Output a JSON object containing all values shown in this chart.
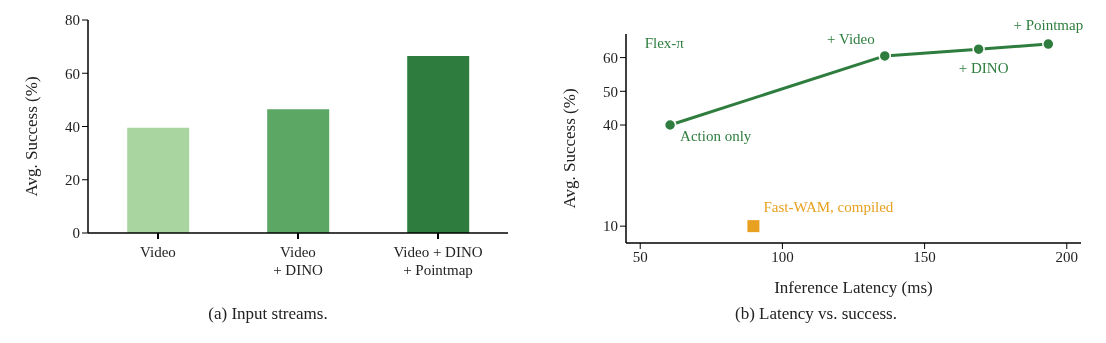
{
  "chart_data": [
    {
      "type": "bar",
      "title": "(a) Input streams.",
      "ylabel": "Avg. Success (%)",
      "categories": [
        "Video",
        "Video\n+ DINO",
        "Video + DINO\n+ Pointmap"
      ],
      "values": [
        39.5,
        46.5,
        66.5
      ],
      "colors": [
        "#a8d5a0",
        "#5ba763",
        "#2e7d3e"
      ],
      "ylim": [
        0,
        80
      ],
      "yticks": [
        0,
        20,
        40,
        60,
        80
      ],
      "grid": false,
      "legend": false
    },
    {
      "type": "line",
      "title": "(b) Latency vs. success.",
      "xlabel": "Inference Latency (ms)",
      "ylabel": "Avg. Success (%)",
      "xlim": [
        45,
        205
      ],
      "xticks": [
        50,
        100,
        150,
        200
      ],
      "ylim": [
        5,
        67
      ],
      "yticks": [
        10,
        40,
        50,
        60
      ],
      "grid": false,
      "legend": false,
      "series": [
        {
          "name": "Flex-π",
          "color": "#2e7d3e",
          "type": "line",
          "marker": "circle",
          "x": [
            60.5,
            136,
            169,
            193.5
          ],
          "values": [
            40,
            60.5,
            62.5,
            64
          ]
        },
        {
          "name": "Fast-WAM, compiled",
          "color": "#e8a020",
          "type": "scatter",
          "marker": "square",
          "x": [
            89.8
          ],
          "values": [
            10
          ]
        }
      ],
      "annotations": [
        {
          "text": "Action only",
          "x": 60.5,
          "y": 40
        },
        {
          "text": "+ Video",
          "x": 136,
          "y": 60.5
        },
        {
          "text": "+ DINO",
          "x": 169,
          "y": 62.5
        },
        {
          "text": "+ Pointmap",
          "x": 193.5,
          "y": 64
        }
      ]
    }
  ]
}
